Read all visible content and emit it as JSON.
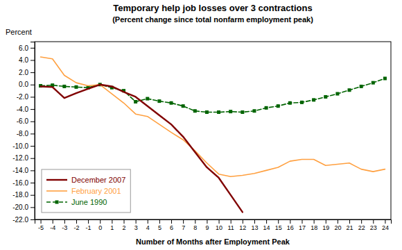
{
  "chart_data": {
    "type": "line",
    "title": "Temporary help job losses over 3 contractions",
    "subtitle": "(Percent change since total nonfarm employment peak)",
    "y_label": "Percent",
    "x_label": "Number of Months after Employment Peak",
    "xlim": [
      -5.5,
      24.5
    ],
    "ylim": [
      -22.0,
      7.0
    ],
    "xticks": [
      -5,
      -4,
      -3,
      -2,
      -1,
      0,
      1,
      2,
      3,
      4,
      5,
      6,
      7,
      8,
      9,
      10,
      11,
      12,
      13,
      14,
      15,
      16,
      17,
      18,
      19,
      20,
      21,
      22,
      23,
      24
    ],
    "yticks": [
      {
        "value": 6.0,
        "label": "6.0"
      },
      {
        "value": 4.0,
        "label": "4.0"
      },
      {
        "value": 2.0,
        "label": "2.0"
      },
      {
        "value": 0.0,
        "label": "0.0"
      },
      {
        "value": -2.0,
        "label": "-2.0"
      },
      {
        "value": -4.0,
        "label": "-4.0"
      },
      {
        "value": -6.0,
        "label": "-6.0"
      },
      {
        "value": -8.0,
        "label": "-8.0"
      },
      {
        "value": -10.0,
        "label": "-10.0"
      },
      {
        "value": -12.0,
        "label": "-12.0"
      },
      {
        "value": -14.0,
        "label": "-14.0"
      },
      {
        "value": -16.0,
        "label": "-16.0"
      },
      {
        "value": -18.0,
        "label": "-18.0"
      },
      {
        "value": -20.0,
        "label": "-20.0"
      },
      {
        "value": -22.0,
        "label": "-22.0"
      }
    ],
    "grid": false,
    "legend": "lower left",
    "series": [
      {
        "name": "December 2007",
        "color": "#800000",
        "line_style": "solid",
        "x": [
          -5,
          -4,
          -3,
          -2,
          -1,
          0,
          1,
          2,
          3,
          4,
          5,
          6,
          7,
          8,
          9,
          10,
          11,
          12
        ],
        "values": [
          -0.3,
          -0.4,
          -2.2,
          -1.4,
          -0.7,
          0.0,
          -0.3,
          -1.2,
          -2.0,
          -3.5,
          -5.0,
          -6.5,
          -8.5,
          -11.0,
          -13.5,
          -15.2,
          -18.0,
          -20.8
        ]
      },
      {
        "name": "February 2001",
        "color": "#FFA040",
        "line_style": "solid",
        "x": [
          -5,
          -4,
          -3,
          -2,
          -1,
          0,
          1,
          2,
          3,
          4,
          5,
          6,
          7,
          8,
          9,
          10,
          11,
          12,
          13,
          14,
          15,
          16,
          17,
          18,
          19,
          20,
          21,
          22,
          23,
          24
        ],
        "values": [
          4.5,
          4.2,
          1.5,
          0.3,
          -0.2,
          0.0,
          -1.5,
          -3.0,
          -4.8,
          -5.2,
          -6.5,
          -7.8,
          -9.0,
          -10.8,
          -12.8,
          -14.6,
          -15.0,
          -14.8,
          -14.5,
          -14.0,
          -13.5,
          -12.5,
          -12.2,
          -12.2,
          -13.2,
          -13.0,
          -12.8,
          -13.8,
          -14.2,
          -13.8
        ]
      },
      {
        "name": "June 1990",
        "color": "#006400",
        "line_style": "dashed",
        "marker": "square",
        "x": [
          -5,
          -4,
          -3,
          -2,
          -1,
          0,
          1,
          2,
          3,
          4,
          5,
          6,
          7,
          8,
          9,
          10,
          11,
          12,
          13,
          14,
          15,
          16,
          17,
          18,
          19,
          20,
          21,
          22,
          23,
          24
        ],
        "values": [
          -0.2,
          -0.1,
          -0.3,
          -0.4,
          -0.5,
          0.0,
          -0.5,
          -1.0,
          -2.8,
          -2.3,
          -2.7,
          -3.0,
          -3.5,
          -4.3,
          -4.5,
          -4.5,
          -4.4,
          -4.5,
          -4.3,
          -3.8,
          -3.5,
          -3.0,
          -2.9,
          -2.5,
          -2.0,
          -1.5,
          -0.9,
          -0.3,
          0.3,
          1.0
        ]
      }
    ]
  }
}
